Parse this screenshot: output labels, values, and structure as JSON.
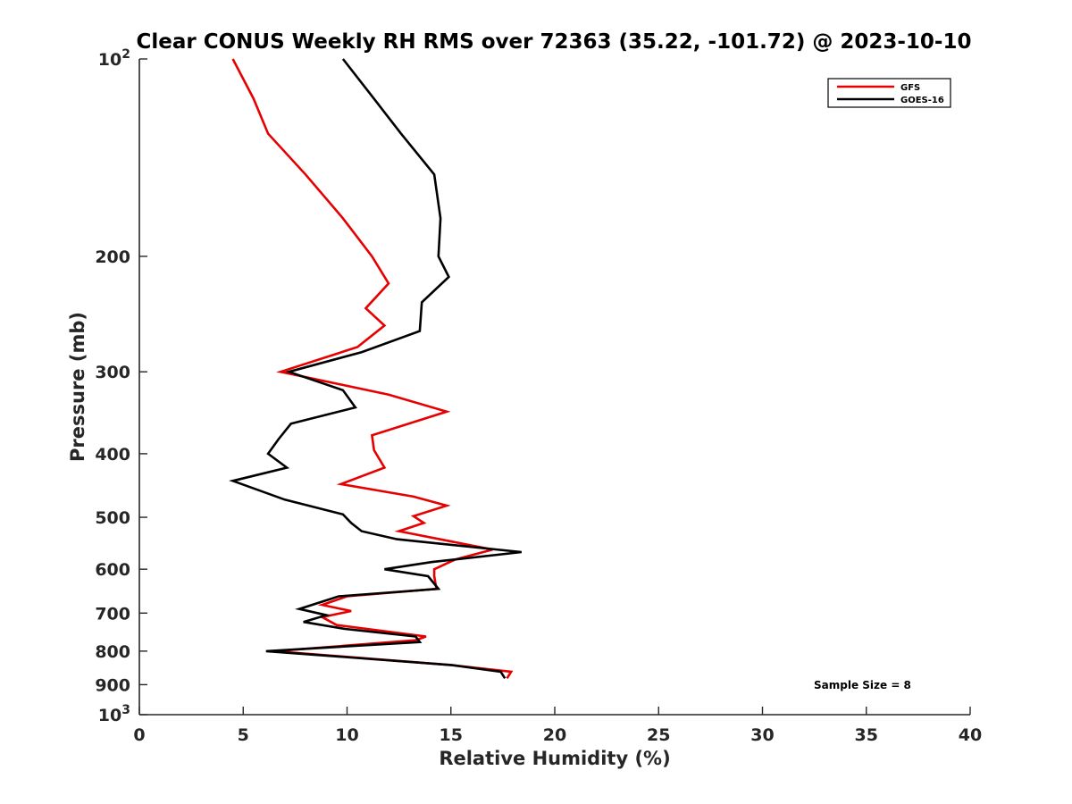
{
  "chart_data": {
    "type": "line",
    "title": "Clear CONUS Weekly RH RMS over 72363 (35.22, -101.72) @ 2023-10-10",
    "xlabel": "Relative Humidity (%)",
    "ylabel": "Pressure (mb)",
    "xlim": [
      0,
      40
    ],
    "ylim": [
      100,
      1000
    ],
    "yscale": "log",
    "y_reversed": true,
    "x_ticks": [
      0,
      5,
      10,
      15,
      20,
      25,
      30,
      35,
      40
    ],
    "y_ticks": [
      {
        "value": 100,
        "label": "10",
        "sup": "2"
      },
      {
        "value": 200,
        "label": "200"
      },
      {
        "value": 300,
        "label": "300"
      },
      {
        "value": 400,
        "label": "400"
      },
      {
        "value": 500,
        "label": "500"
      },
      {
        "value": 600,
        "label": "600"
      },
      {
        "value": 700,
        "label": "700"
      },
      {
        "value": 800,
        "label": "800"
      },
      {
        "value": 900,
        "label": "900"
      },
      {
        "value": 1000,
        "label": "10",
        "sup": "3"
      }
    ],
    "legend_position": "top-right",
    "annotation": "Sample Size = 8",
    "series": [
      {
        "name": "GFS",
        "color": "#e60000",
        "points": [
          [
            4.5,
            100
          ],
          [
            5.5,
            115
          ],
          [
            6.2,
            130
          ],
          [
            8.0,
            150
          ],
          [
            9.8,
            175
          ],
          [
            11.2,
            200
          ],
          [
            12.0,
            220
          ],
          [
            10.9,
            240
          ],
          [
            11.8,
            255
          ],
          [
            10.5,
            275
          ],
          [
            6.8,
            300
          ],
          [
            12.0,
            325
          ],
          [
            14.8,
            345
          ],
          [
            11.2,
            375
          ],
          [
            11.3,
            395
          ],
          [
            11.8,
            420
          ],
          [
            9.7,
            445
          ],
          [
            13.2,
            465
          ],
          [
            14.8,
            480
          ],
          [
            13.2,
            498
          ],
          [
            13.7,
            510
          ],
          [
            12.5,
            525
          ],
          [
            17.0,
            560
          ],
          [
            15.2,
            580
          ],
          [
            14.2,
            600
          ],
          [
            14.2,
            615
          ],
          [
            14.3,
            643
          ],
          [
            10.0,
            660
          ],
          [
            8.8,
            680
          ],
          [
            10.2,
            695
          ],
          [
            8.8,
            710
          ],
          [
            9.5,
            730
          ],
          [
            13.8,
            760
          ],
          [
            13.3,
            770
          ],
          [
            6.5,
            800
          ],
          [
            15.0,
            840
          ],
          [
            17.9,
            860
          ],
          [
            17.7,
            880
          ]
        ]
      },
      {
        "name": "GOES-16",
        "color": "#000000",
        "points": [
          [
            9.8,
            100
          ],
          [
            11.3,
            115
          ],
          [
            12.6,
            130
          ],
          [
            14.2,
            150
          ],
          [
            14.5,
            175
          ],
          [
            14.4,
            200
          ],
          [
            14.9,
            215
          ],
          [
            13.6,
            235
          ],
          [
            13.5,
            260
          ],
          [
            10.7,
            280
          ],
          [
            7.2,
            300
          ],
          [
            9.8,
            320
          ],
          [
            10.4,
            340
          ],
          [
            7.3,
            360
          ],
          [
            6.7,
            380
          ],
          [
            6.2,
            400
          ],
          [
            7.1,
            420
          ],
          [
            4.5,
            440
          ],
          [
            7.0,
            470
          ],
          [
            9.8,
            495
          ],
          [
            10.2,
            510
          ],
          [
            10.7,
            525
          ],
          [
            12.4,
            540
          ],
          [
            18.4,
            565
          ],
          [
            14.1,
            585
          ],
          [
            11.8,
            600
          ],
          [
            13.9,
            615
          ],
          [
            14.4,
            643
          ],
          [
            9.6,
            660
          ],
          [
            7.7,
            690
          ],
          [
            9.0,
            705
          ],
          [
            7.9,
            722
          ],
          [
            9.9,
            740
          ],
          [
            13.3,
            760
          ],
          [
            13.5,
            775
          ],
          [
            6.1,
            800
          ],
          [
            15.0,
            840
          ],
          [
            17.4,
            860
          ],
          [
            17.6,
            880
          ]
        ]
      }
    ]
  }
}
